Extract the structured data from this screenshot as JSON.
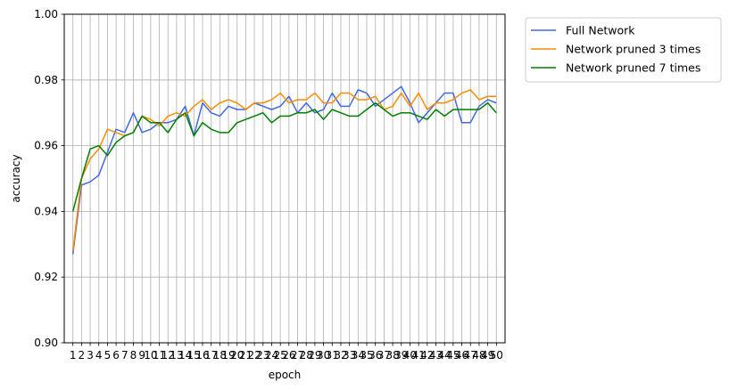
{
  "chart_data": {
    "type": "line",
    "title": "",
    "xlabel": "epoch",
    "ylabel": "accuracy",
    "x": [
      1,
      2,
      3,
      4,
      5,
      6,
      7,
      8,
      9,
      10,
      11,
      12,
      13,
      14,
      15,
      16,
      17,
      18,
      19,
      20,
      21,
      22,
      23,
      24,
      25,
      26,
      27,
      28,
      29,
      30,
      31,
      32,
      33,
      34,
      35,
      36,
      37,
      38,
      39,
      40,
      41,
      42,
      43,
      44,
      45,
      46,
      47,
      48,
      49,
      50
    ],
    "ylim": [
      0.9,
      1.0
    ],
    "yticks": [
      0.9,
      0.92,
      0.94,
      0.96,
      0.98,
      1.0
    ],
    "ytick_labels": [
      "0.90",
      "0.92",
      "0.94",
      "0.96",
      "0.98",
      "1.00"
    ],
    "grid": true,
    "legend_position": "outside-top-right",
    "series": [
      {
        "name": "Full Network",
        "color": "#4169e1",
        "values": [
          0.927,
          0.948,
          0.949,
          0.951,
          0.958,
          0.965,
          0.964,
          0.97,
          0.964,
          0.965,
          0.967,
          0.967,
          0.968,
          0.972,
          0.963,
          0.973,
          0.97,
          0.969,
          0.972,
          0.971,
          0.971,
          0.973,
          0.972,
          0.971,
          0.972,
          0.975,
          0.97,
          0.973,
          0.97,
          0.971,
          0.976,
          0.972,
          0.972,
          0.977,
          0.976,
          0.972,
          0.974,
          0.976,
          0.978,
          0.973,
          0.967,
          0.97,
          0.973,
          0.976,
          0.976,
          0.967,
          0.967,
          0.972,
          0.974,
          0.973
        ]
      },
      {
        "name": "Network pruned 3 times",
        "color": "#ff8c00",
        "values": [
          0.928,
          0.95,
          0.956,
          0.959,
          0.965,
          0.964,
          0.963,
          0.964,
          0.969,
          0.968,
          0.966,
          0.969,
          0.97,
          0.969,
          0.972,
          0.974,
          0.971,
          0.973,
          0.974,
          0.973,
          0.971,
          0.973,
          0.973,
          0.974,
          0.976,
          0.973,
          0.974,
          0.974,
          0.976,
          0.973,
          0.973,
          0.976,
          0.976,
          0.974,
          0.974,
          0.975,
          0.971,
          0.972,
          0.976,
          0.972,
          0.976,
          0.971,
          0.973,
          0.973,
          0.974,
          0.976,
          0.977,
          0.974,
          0.975,
          0.975
        ]
      },
      {
        "name": "Network pruned 7 times",
        "color": "#008000",
        "values": [
          0.94,
          0.95,
          0.959,
          0.96,
          0.957,
          0.961,
          0.963,
          0.964,
          0.969,
          0.967,
          0.967,
          0.964,
          0.968,
          0.97,
          0.963,
          0.967,
          0.965,
          0.964,
          0.964,
          0.967,
          0.968,
          0.969,
          0.97,
          0.967,
          0.969,
          0.969,
          0.97,
          0.97,
          0.971,
          0.968,
          0.971,
          0.97,
          0.969,
          0.969,
          0.971,
          0.973,
          0.971,
          0.969,
          0.97,
          0.97,
          0.969,
          0.968,
          0.971,
          0.969,
          0.971,
          0.971,
          0.971,
          0.971,
          0.973,
          0.97
        ]
      }
    ]
  }
}
